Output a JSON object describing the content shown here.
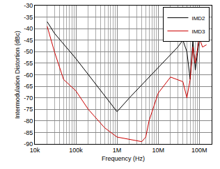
{
  "chart_data": {
    "type": "line",
    "x_label": "Frequency (Hz)",
    "y_label": "Intermodulation Distortion (dBc)",
    "log": "x",
    "grid": true,
    "legend": "top-right",
    "xlim": [
      10000,
      200000000
    ],
    "xticks": [
      {
        "value": 10000,
        "label": "10k"
      },
      {
        "value": 100000,
        "label": "100k"
      },
      {
        "value": 1000000,
        "label": "1M"
      },
      {
        "value": 10000000,
        "label": "10M"
      },
      {
        "value": 100000000,
        "label": "100M"
      }
    ],
    "ylim": [
      -90,
      -30
    ],
    "yticks": [
      -90,
      -85,
      -80,
      -75,
      -70,
      -65,
      -60,
      -55,
      -50,
      -45,
      -40,
      -35,
      -30
    ],
    "series": [
      {
        "name": "IMD2",
        "color": "#000000",
        "x": [
          20000,
          30000,
          100000,
          300000,
          1000000,
          2000000,
          10000000,
          30000000,
          40000000,
          50000000,
          60000000,
          70000000,
          80000000,
          100000000,
          120000000,
          150000000
        ],
        "values": [
          -37,
          -42,
          -53,
          -64,
          -76,
          -70,
          -57,
          -48,
          -45,
          -50,
          -62,
          -45,
          -58,
          -45,
          -42,
          -44
        ]
      },
      {
        "name": "IMD3",
        "color": "#cc0000",
        "x": [
          20000,
          30000,
          50000,
          100000,
          200000,
          500000,
          1000000,
          2000000,
          4000000,
          5000000,
          6000000,
          10000000,
          20000000,
          40000000,
          50000000,
          60000000,
          70000000,
          80000000,
          100000000,
          120000000,
          150000000
        ],
        "values": [
          -39,
          -50,
          -62,
          -67,
          -75,
          -83,
          -87,
          -88,
          -89,
          -87,
          -80,
          -68,
          -61,
          -63,
          -70,
          -62,
          -48,
          -55,
          -44,
          -48,
          -47
        ]
      }
    ]
  }
}
